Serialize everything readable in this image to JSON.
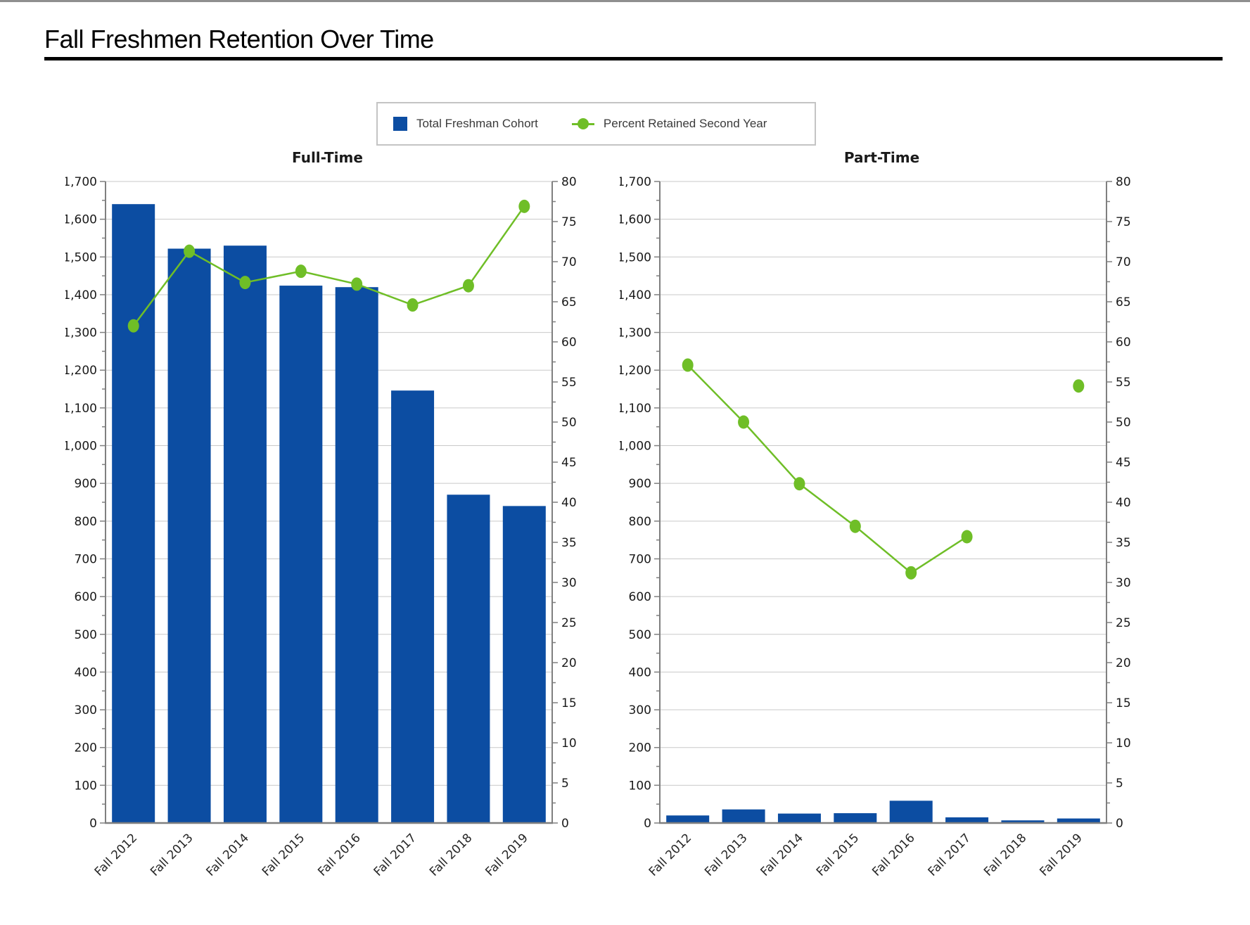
{
  "page": {
    "title": "Fall Freshmen Retention Over Time"
  },
  "legend": {
    "items": [
      {
        "label": "Total Freshman Cohort",
        "type": "bar",
        "color": "#0c4da2"
      },
      {
        "label": "Percent Retained Second Year",
        "type": "line",
        "color": "#6fbe27"
      }
    ]
  },
  "style": {
    "bar_color": "#0c4da2",
    "line_color": "#6fbe27",
    "grid_color": "#c9c9c9",
    "axis_color": "#7f7f7f",
    "tick_label_color": "#1a1a1a",
    "x_label_color": "#262626"
  },
  "chart_data": [
    {
      "type": "bar",
      "title": "Full-Time",
      "categories": [
        "Fall 2012",
        "Fall 2013",
        "Fall 2014",
        "Fall 2015",
        "Fall 2016",
        "Fall 2017",
        "Fall 2018",
        "Fall 2019"
      ],
      "series": [
        {
          "name": "Total Freshman Cohort",
          "type": "bar",
          "axis": "left",
          "values": [
            1640,
            1522,
            1530,
            1424,
            1420,
            1146,
            870,
            840
          ]
        },
        {
          "name": "Percent Retained Second Year",
          "type": "line",
          "axis": "right",
          "values": [
            62.0,
            71.3,
            67.4,
            68.8,
            67.2,
            64.6,
            67.0,
            76.9
          ]
        }
      ],
      "left_axis": {
        "min": 0,
        "max": 1700,
        "major_step": 100,
        "minor_step": 50
      },
      "right_axis": {
        "min": 0,
        "max": 80,
        "major_step": 5,
        "minor_step": 2.5
      },
      "grid": "horizontal",
      "legend_position": "top"
    },
    {
      "type": "bar",
      "title": "Part-Time",
      "categories": [
        "Fall 2012",
        "Fall 2013",
        "Fall 2014",
        "Fall 2015",
        "Fall 2016",
        "Fall 2017",
        "Fall 2018",
        "Fall 2019"
      ],
      "series": [
        {
          "name": "Total Freshman Cohort",
          "type": "bar",
          "axis": "left",
          "values": [
            20,
            36,
            25,
            26,
            59,
            15,
            7,
            12
          ]
        },
        {
          "name": "Percent Retained Second Year",
          "type": "line",
          "axis": "right",
          "values": [
            57.1,
            50.0,
            42.3,
            37.0,
            31.2,
            35.7,
            null,
            54.5
          ]
        }
      ],
      "left_axis": {
        "min": 0,
        "max": 1700,
        "major_step": 100,
        "minor_step": 50
      },
      "right_axis": {
        "min": 0,
        "max": 80,
        "major_step": 5,
        "minor_step": 2.5
      },
      "grid": "horizontal",
      "legend_position": "top"
    }
  ]
}
